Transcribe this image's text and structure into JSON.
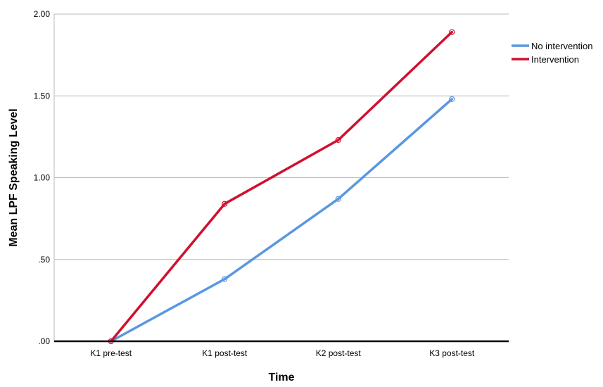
{
  "chart_data": {
    "type": "line",
    "categories": [
      "K1 pre-test",
      "K1 post-test",
      "K2 post-test",
      "K3 post-test"
    ],
    "series": [
      {
        "name": "No intervention",
        "color": "#5a97e1",
        "values": [
          0.0,
          0.38,
          0.87,
          1.48
        ]
      },
      {
        "name": "Intervention",
        "color": "#d0102e",
        "values": [
          0.0,
          0.84,
          1.23,
          1.89
        ]
      }
    ],
    "xlabel": "Time",
    "ylabel": "Mean LPF Speaking Level",
    "ylim": [
      0,
      2.0
    ],
    "yticks": [
      {
        "value": 0.0,
        "label": ".00"
      },
      {
        "value": 0.5,
        "label": ".50"
      },
      {
        "value": 1.0,
        "label": "1.00"
      },
      {
        "value": 1.5,
        "label": "1.50"
      },
      {
        "value": 2.0,
        "label": "2.00"
      }
    ],
    "grid": true,
    "legend": "top-right"
  }
}
